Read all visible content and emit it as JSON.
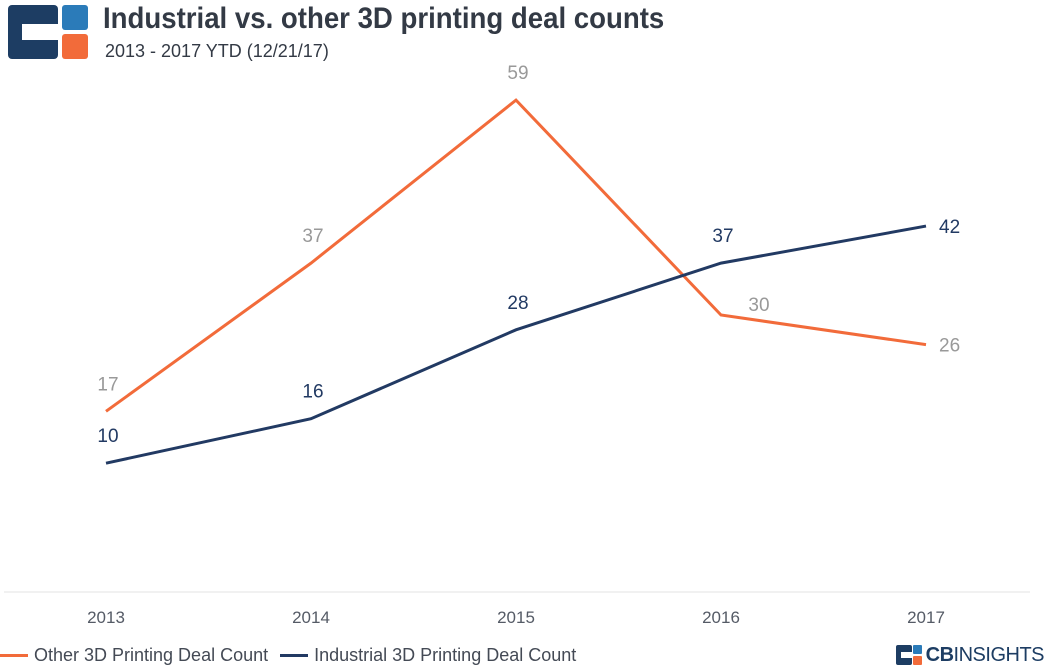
{
  "header": {
    "title": "Industrial vs. other 3D printing deal counts",
    "subtitle": "2013 - 2017 YTD (12/21/17)"
  },
  "brand": {
    "name_bold": "CB",
    "name_light": "INSIGHTS",
    "logo": "cb-insights-logo-icon",
    "colors": {
      "navy": "#1d3d63",
      "blue": "#2b7bb9",
      "orange": "#f26b3a"
    }
  },
  "chart_data": {
    "type": "line",
    "title": "Industrial vs. other 3D printing deal counts",
    "subtitle": "2013 - 2017 YTD (12/21/17)",
    "xlabel": "",
    "ylabel": "",
    "categories": [
      "2013",
      "2014",
      "2015",
      "2016",
      "2017"
    ],
    "series": [
      {
        "name": "Other 3D Printing Deal Count",
        "values": [
          17,
          37,
          59,
          30,
          26
        ],
        "color": "#f26b3a",
        "label_color": "#999999"
      },
      {
        "name": "Industrial 3D Printing Deal Count",
        "values": [
          10,
          16,
          28,
          37,
          42
        ],
        "color": "#223a63",
        "label_color": "#223a63"
      }
    ],
    "ylim": [
      -0.5,
      60.5
    ],
    "grid": false,
    "legend": "bottom-left",
    "data_labels": true
  }
}
